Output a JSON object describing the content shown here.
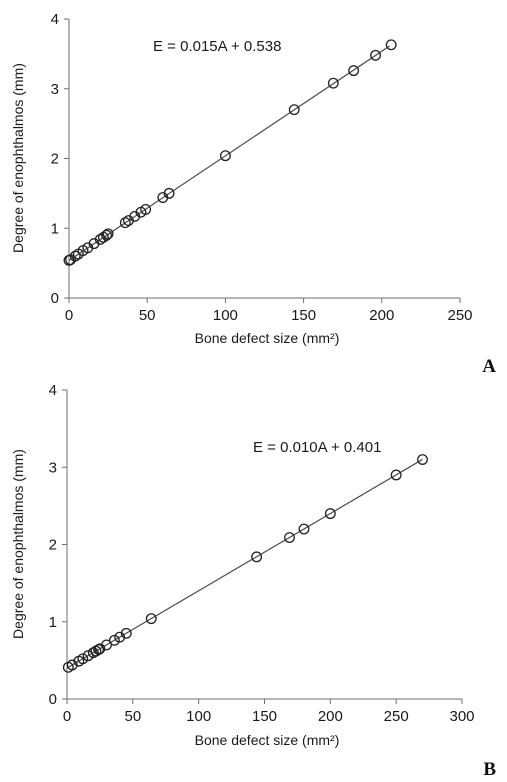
{
  "chart_data": [
    {
      "type": "scatter",
      "panel_label": "A",
      "equation": "E = 0.015A + 0.538",
      "xlabel": "Bone defect size (mm²)",
      "ylabel": "Degree of enophthalmos (mm)",
      "xlim": [
        0,
        250
      ],
      "ylim": [
        0,
        4
      ],
      "xticks": [
        0,
        50,
        100,
        150,
        200,
        250
      ],
      "yticks": [
        0,
        1,
        2,
        3,
        4
      ],
      "grid": false,
      "trendline": {
        "slope": 0.015,
        "intercept": 0.538,
        "x_range": [
          0,
          205
        ]
      },
      "series": [
        {
          "x": [
            0,
            1,
            4,
            6,
            9,
            12,
            16,
            20,
            22,
            24,
            25,
            36,
            38,
            42,
            46,
            49,
            60,
            64,
            100,
            144,
            169,
            182,
            196,
            206
          ],
          "y": [
            0.54,
            0.55,
            0.6,
            0.63,
            0.68,
            0.72,
            0.78,
            0.84,
            0.87,
            0.9,
            0.92,
            1.08,
            1.11,
            1.17,
            1.23,
            1.27,
            1.44,
            1.5,
            2.04,
            2.7,
            3.08,
            3.26,
            3.48,
            3.63
          ]
        }
      ]
    },
    {
      "type": "scatter",
      "panel_label": "B",
      "equation": "E = 0.010A + 0.401",
      "xlabel": "Bone defect size (mm²)",
      "ylabel": "Degree of enophthalmos (mm)",
      "xlim": [
        0,
        300
      ],
      "ylim": [
        0,
        4
      ],
      "xticks": [
        0,
        50,
        100,
        150,
        200,
        250,
        300
      ],
      "yticks": [
        0,
        1,
        2,
        3,
        4
      ],
      "grid": false,
      "trendline": {
        "slope": 0.01,
        "intercept": 0.401,
        "x_range": [
          0,
          270
        ]
      },
      "series": [
        {
          "x": [
            1,
            4,
            9,
            12,
            16,
            20,
            22,
            24,
            25,
            30,
            36,
            40,
            45,
            64,
            144,
            169,
            180,
            200,
            250,
            270
          ],
          "y": [
            0.41,
            0.44,
            0.49,
            0.52,
            0.56,
            0.6,
            0.62,
            0.64,
            0.65,
            0.7,
            0.76,
            0.8,
            0.85,
            1.04,
            1.84,
            2.09,
            2.2,
            2.4,
            2.9,
            3.1
          ]
        }
      ]
    }
  ]
}
